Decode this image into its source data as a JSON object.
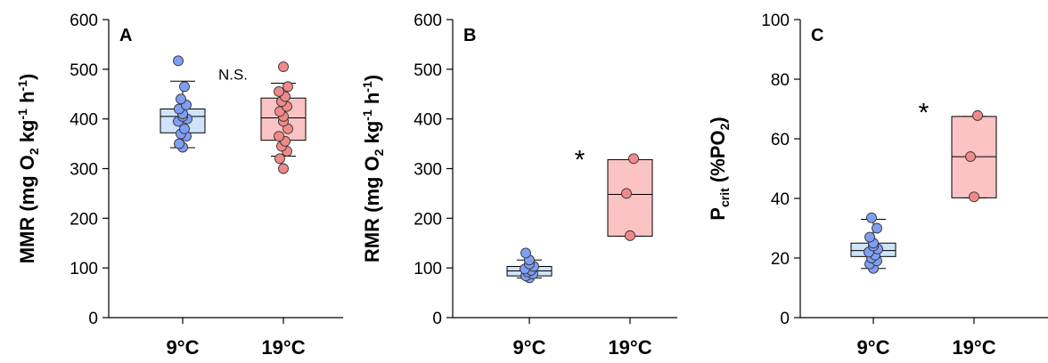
{
  "colors": {
    "cold_fill": "#cfe3fb",
    "cold_point": "#7f9ef5",
    "warm_fill": "#fbc3c3",
    "warm_point": "#f08a8a",
    "line": "#000000"
  },
  "chart_data": [
    {
      "type": "box",
      "panel": "A",
      "ylabel": {
        "main": "MMR (mg O",
        "sub1": "2",
        "mid": " kg",
        "sup1": "-1",
        "tail": " h",
        "sup2": "-1",
        "end": ")"
      },
      "ylim": [
        0,
        600
      ],
      "yticks": [
        0,
        100,
        200,
        300,
        400,
        500,
        600
      ],
      "categories": [
        "9°C",
        "19°C"
      ],
      "annotation": {
        "text": "N.S.",
        "x": 1.5,
        "y": 490
      },
      "boxes": [
        {
          "name": "9°C",
          "q1": 372,
          "median": 405,
          "q3": 420,
          "whisker_low": 342,
          "whisker_high": 476,
          "points": [
            343,
            350,
            365,
            370,
            380,
            395,
            400,
            405,
            410,
            420,
            428,
            440,
            465,
            517
          ]
        },
        {
          "name": "19°C",
          "q1": 357,
          "median": 402,
          "q3": 442,
          "whisker_low": 325,
          "whisker_high": 472,
          "points": [
            300,
            320,
            335,
            345,
            355,
            365,
            380,
            395,
            405,
            415,
            425,
            435,
            445,
            455,
            465,
            505
          ]
        }
      ]
    },
    {
      "type": "box",
      "panel": "B",
      "ylabel": {
        "main": "RMR (mg O",
        "sub1": "2",
        "mid": " kg",
        "sup1": "-1",
        "tail": " h",
        "sup2": "-1",
        "end": ")"
      },
      "ylim": [
        0,
        600
      ],
      "yticks": [
        0,
        100,
        200,
        300,
        400,
        500,
        600
      ],
      "categories": [
        "9°C",
        "19°C"
      ],
      "annotation": {
        "text": "*",
        "x": 1.5,
        "y": 325
      },
      "boxes": [
        {
          "name": "9°C",
          "q1": 84,
          "median": 94,
          "q3": 103,
          "whisker_low": 80,
          "whisker_high": 116,
          "points": [
            80,
            84,
            88,
            92,
            95,
            98,
            103,
            108,
            116,
            130
          ]
        },
        {
          "name": "19°C",
          "q1": 164,
          "median": 248,
          "q3": 318,
          "whisker_low": 164,
          "whisker_high": 318,
          "points": [
            165,
            250,
            320
          ]
        }
      ]
    },
    {
      "type": "box",
      "panel": "C",
      "ylabel": {
        "main": "P",
        "sub1": "crit",
        "mid": " (%PO",
        "sub2": "2",
        "end": ")"
      },
      "ylim": [
        0,
        100
      ],
      "yticks": [
        0,
        20,
        40,
        60,
        80,
        100
      ],
      "categories": [
        "9°C",
        "19°C"
      ],
      "annotation": {
        "text": "*",
        "x": 1.5,
        "y": 70
      },
      "boxes": [
        {
          "name": "9°C",
          "q1": 20.5,
          "median": 22.5,
          "q3": 25,
          "whisker_low": 16.5,
          "whisker_high": 33,
          "points": [
            16.5,
            18,
            19,
            20,
            21,
            22,
            23,
            24,
            25,
            27,
            30,
            33.5
          ]
        },
        {
          "name": "19°C",
          "q1": 40.2,
          "median": 54,
          "q3": 67.5,
          "whisker_low": 40.2,
          "whisker_high": 67.5,
          "points": [
            40.5,
            54,
            67.8
          ]
        }
      ]
    }
  ]
}
